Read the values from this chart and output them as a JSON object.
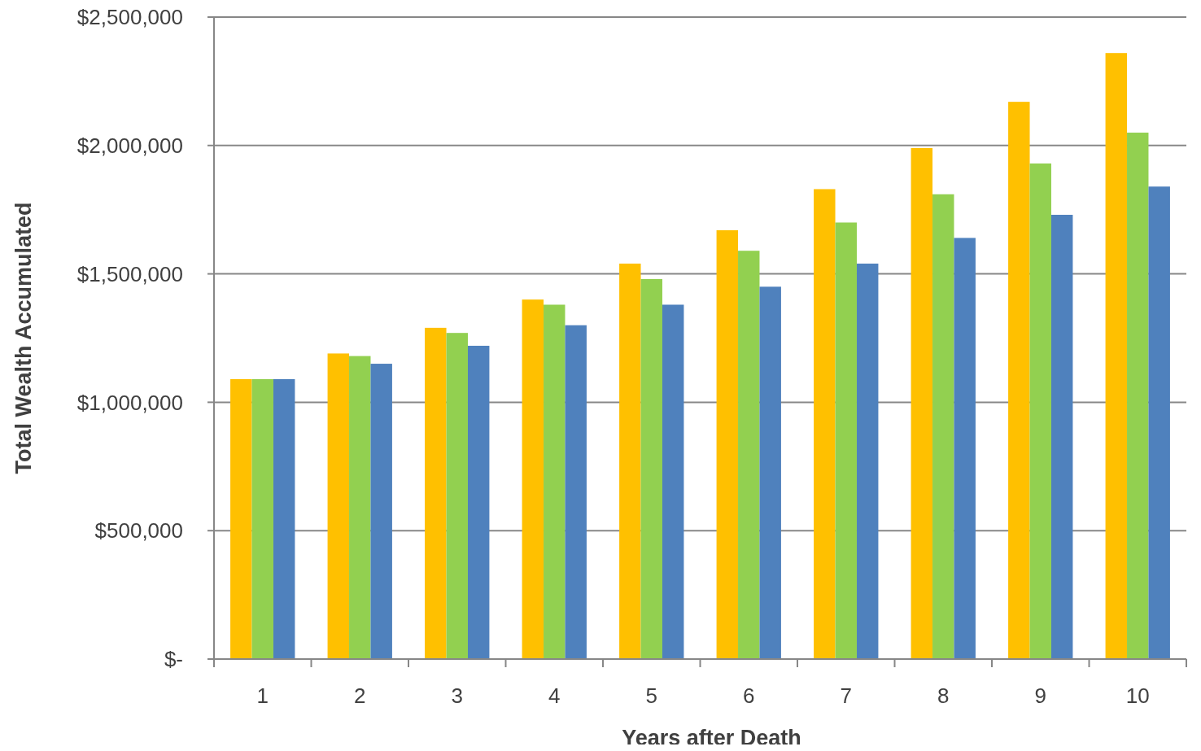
{
  "chart_data": {
    "type": "bar",
    "xlabel": "Years after Death",
    "ylabel": "Total Wealth Accumulated",
    "categories": [
      "1",
      "2",
      "3",
      "4",
      "5",
      "6",
      "7",
      "8",
      "9",
      "10"
    ],
    "series": [
      {
        "color": "#ffc000",
        "values": [
          1090000,
          1190000,
          1290000,
          1400000,
          1540000,
          1670000,
          1830000,
          1990000,
          2170000,
          2360000
        ]
      },
      {
        "color": "#92d050",
        "values": [
          1090000,
          1180000,
          1270000,
          1380000,
          1480000,
          1590000,
          1700000,
          1810000,
          1930000,
          2050000
        ]
      },
      {
        "color": "#4f81bd",
        "values": [
          1090000,
          1150000,
          1220000,
          1300000,
          1380000,
          1450000,
          1540000,
          1640000,
          1730000,
          1840000
        ]
      }
    ],
    "ylim": [
      0,
      2500000
    ],
    "yticks": [
      {
        "value": 0,
        "label": "$-"
      },
      {
        "value": 500000,
        "label": "$500,000"
      },
      {
        "value": 1000000,
        "label": "$1,000,000"
      },
      {
        "value": 1500000,
        "label": "$1,500,000"
      },
      {
        "value": 2000000,
        "label": "$2,000,000"
      },
      {
        "value": 2500000,
        "label": "$2,500,000"
      }
    ],
    "grid": "y"
  }
}
